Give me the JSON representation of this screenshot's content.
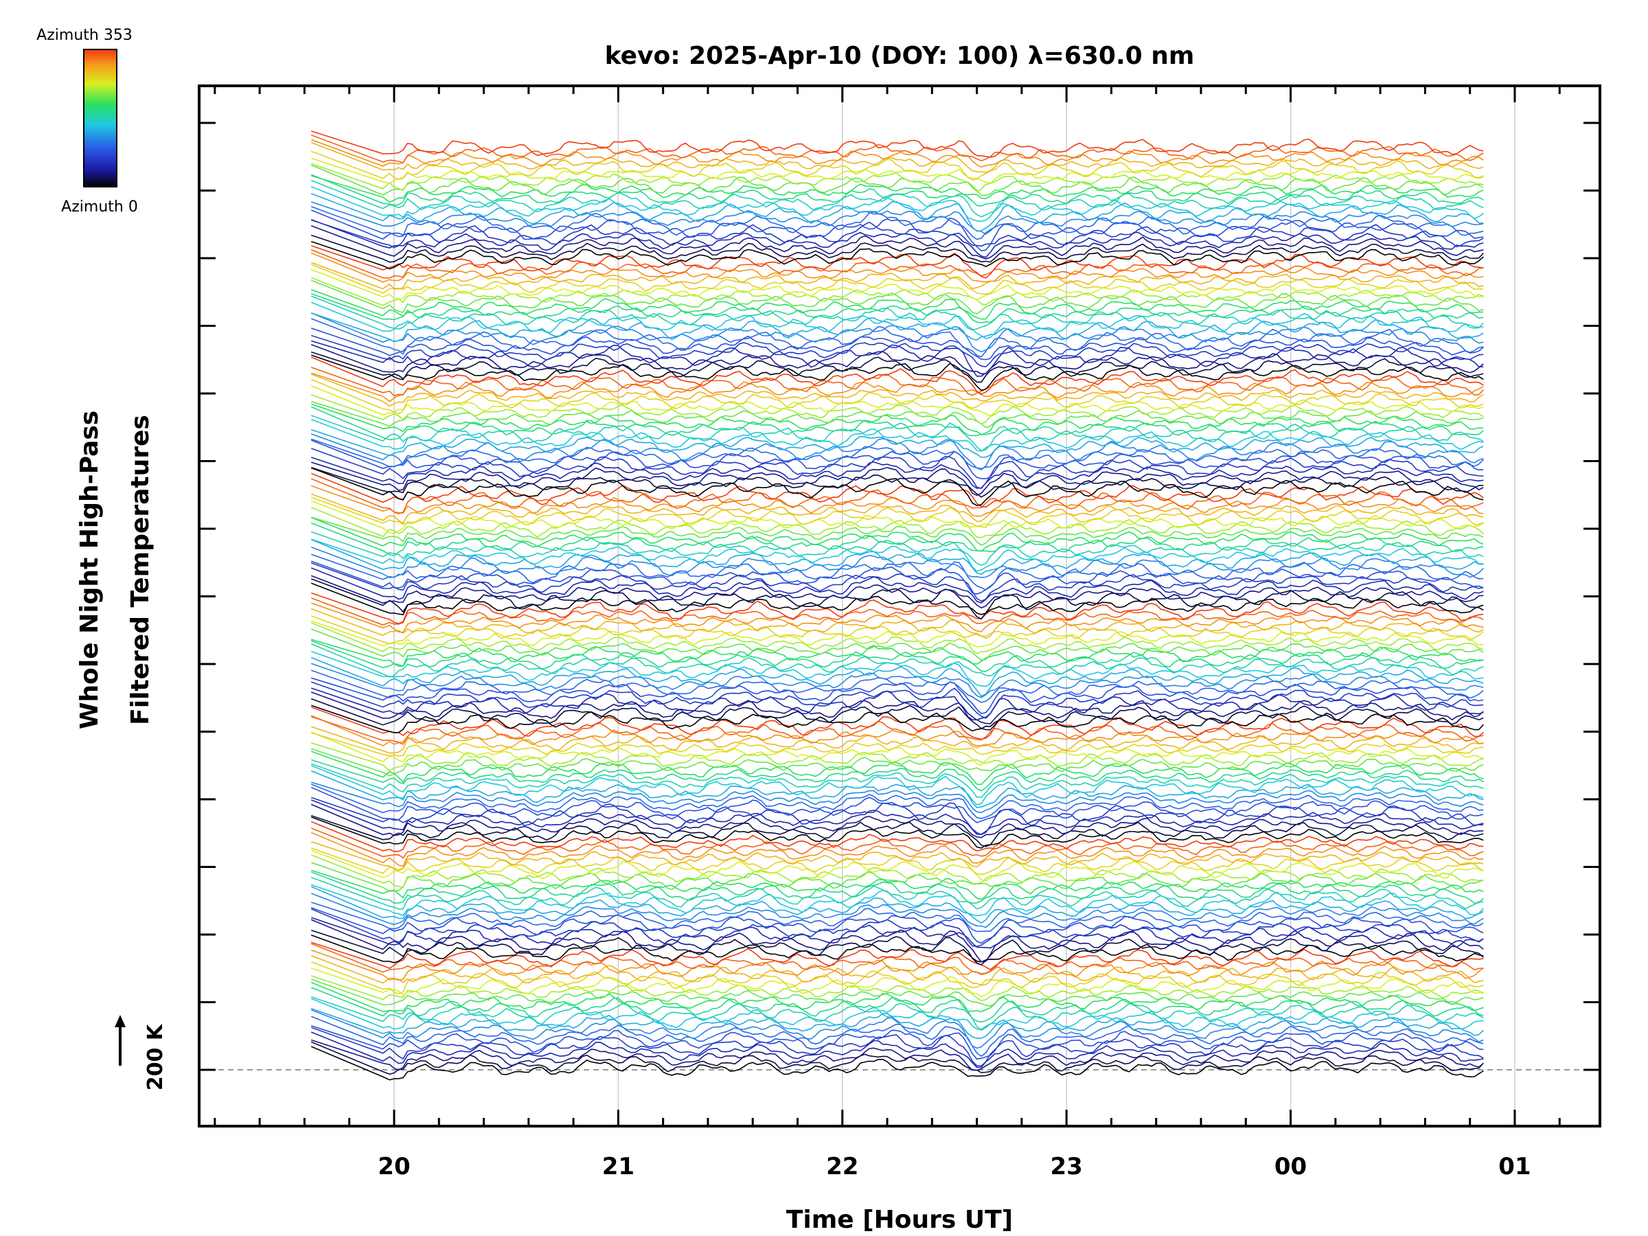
{
  "chart_data": {
    "type": "line",
    "title": "kevo: 2025-Apr-10 (DOY: 100) λ=630.0 nm",
    "xlabel": "Time [Hours UT]",
    "ylabel_line1": "Whole Night High-Pass",
    "ylabel_line2": "Filtered Temperatures",
    "x_tick_labels": [
      "20",
      "21",
      "22",
      "23",
      "00",
      "01"
    ],
    "x_tick_hours": [
      20,
      21,
      22,
      23,
      24,
      25
    ],
    "xlim_hours": [
      19.13,
      25.38
    ],
    "data_range_hours": [
      19.63,
      24.86
    ],
    "gridlines": true,
    "scale_bar_label": "200 K",
    "colorbar": {
      "top_label": "Azimuth 353",
      "bottom_label": "Azimuth 0",
      "min": 0,
      "max": 353,
      "colors": [
        "#000000",
        "#1a1aa0",
        "#2a5ae8",
        "#1fc8e0",
        "#28e060",
        "#d8f020",
        "#f4a21a",
        "#f03a10"
      ]
    },
    "series_count": 168,
    "azimuth_pattern_note": "Stacked traces of 630.0 nm temperatures by azimuth, offset vertically, colored by azimuth 0-353"
  }
}
